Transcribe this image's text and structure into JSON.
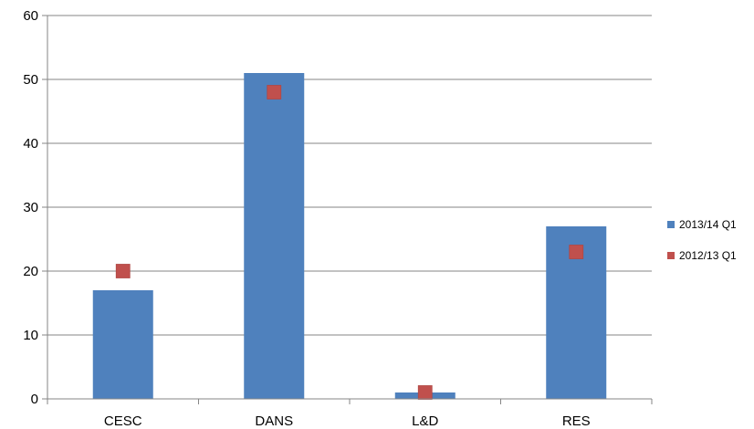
{
  "chart_data": {
    "type": "bar",
    "categories": [
      "CESC",
      "DANS",
      "L&D",
      "RES"
    ],
    "series": [
      {
        "name": "2013/14 Q1",
        "kind": "bar",
        "color": "#4F81BD",
        "values": [
          17,
          51,
          1,
          27
        ]
      },
      {
        "name": "2012/13 Q1",
        "kind": "marker",
        "marker": "square",
        "color": "#C0504D",
        "values": [
          20,
          48,
          1,
          23
        ]
      }
    ],
    "title": "",
    "xlabel": "",
    "ylabel": "",
    "ylim": [
      0,
      60
    ],
    "yticks": [
      0,
      10,
      20,
      30,
      40,
      50,
      60
    ],
    "grid": true,
    "legend_position": "right"
  }
}
